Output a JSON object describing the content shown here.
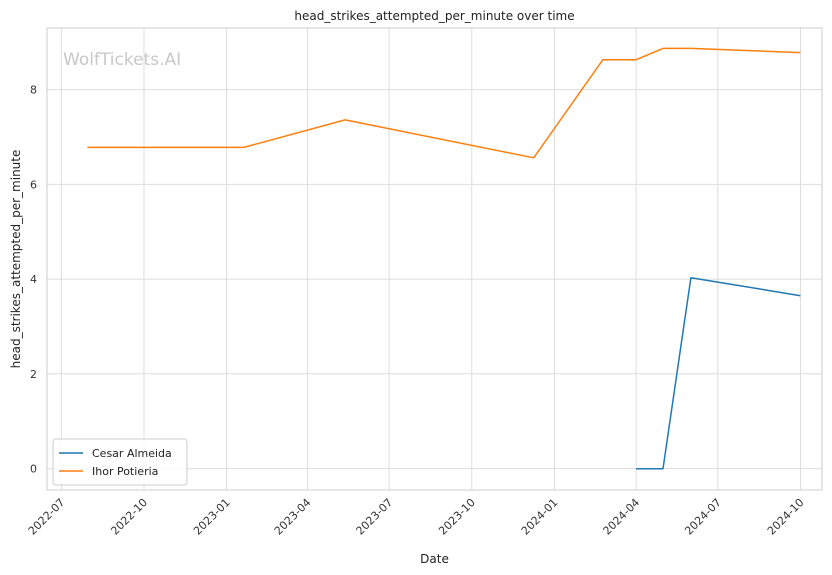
{
  "chart_data": {
    "type": "line",
    "title": "head_strikes_attempted_per_minute over time",
    "xlabel": "Date",
    "ylabel": "head_strikes_attempted_per_minute",
    "x_ticks": [
      "2022-07",
      "2022-10",
      "2023-01",
      "2023-04",
      "2023-07",
      "2023-10",
      "2024-01",
      "2024-04",
      "2024-07",
      "2024-10"
    ],
    "y_ticks": [
      0,
      2,
      4,
      6,
      8
    ],
    "xlim": [
      "2022-06-15",
      "2024-10-25"
    ],
    "ylim": [
      -0.45,
      9.3
    ],
    "grid": true,
    "legend_position": "lower-left",
    "watermark": "WolfTickets.AI",
    "series": [
      {
        "name": "Cesar Almeida",
        "color": "#1f77b4",
        "points": [
          {
            "x": "2024-04-01",
            "y": 0.0
          },
          {
            "x": "2024-05-01",
            "y": 0.0
          },
          {
            "x": "2024-06-01",
            "y": 4.03
          },
          {
            "x": "2024-10-01",
            "y": 3.65
          }
        ]
      },
      {
        "name": "Ihor Potieria",
        "color": "#ff7f0e",
        "points": [
          {
            "x": "2022-07-30",
            "y": 6.78
          },
          {
            "x": "2023-01-20",
            "y": 6.78
          },
          {
            "x": "2023-05-13",
            "y": 7.36
          },
          {
            "x": "2023-12-09",
            "y": 6.56
          },
          {
            "x": "2024-02-24",
            "y": 8.63
          },
          {
            "x": "2024-04-01",
            "y": 8.63
          },
          {
            "x": "2024-05-01",
            "y": 8.87
          },
          {
            "x": "2024-06-01",
            "y": 8.87
          },
          {
            "x": "2024-10-01",
            "y": 8.78
          }
        ]
      }
    ]
  }
}
